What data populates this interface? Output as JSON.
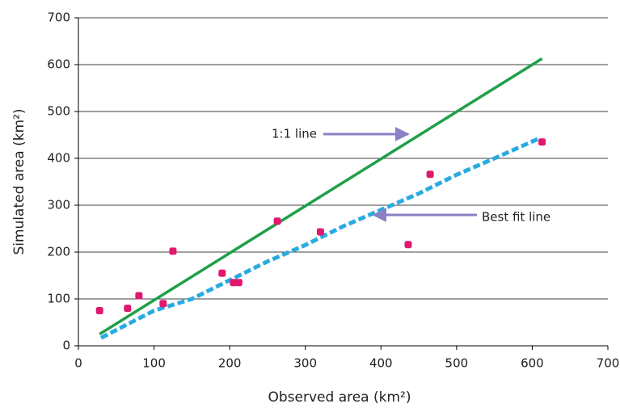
{
  "chart_data": {
    "type": "scatter",
    "xlabel": "Observed area (km²)",
    "ylabel": "Simulated area (km²)",
    "xlim": [
      0,
      700
    ],
    "xticks": [
      0,
      100,
      200,
      300,
      400,
      500,
      600,
      700
    ],
    "ylim": [
      0,
      700
    ],
    "yticks": [
      0,
      100,
      200,
      300,
      400,
      500,
      600,
      700
    ],
    "grid": true,
    "series": [
      {
        "type": "scatter",
        "color": "#e0196e",
        "x": [
          28,
          65,
          80,
          112,
          125,
          190,
          205,
          212,
          263,
          320,
          436,
          465,
          613
        ],
        "values": [
          75,
          80,
          107,
          90,
          202,
          155,
          135,
          135,
          266,
          243,
          216,
          366,
          435
        ]
      },
      {
        "type": "line",
        "color": "#1fa048",
        "dash": false,
        "x": [
          28,
          613
        ],
        "values": [
          25,
          613
        ]
      },
      {
        "type": "line",
        "color": "#29abe2",
        "dash": true,
        "x": [
          30,
          100,
          150,
          200,
          250,
          300,
          350,
          400,
          450,
          500,
          550,
          607
        ],
        "values": [
          17,
          75,
          100,
          140,
          180,
          215,
          255,
          290,
          325,
          365,
          400,
          441
        ]
      }
    ],
    "annotations": [
      "1:1 line",
      "Best fit line"
    ]
  }
}
